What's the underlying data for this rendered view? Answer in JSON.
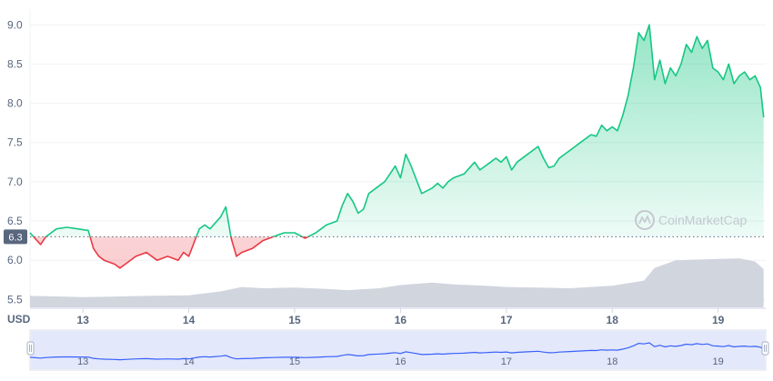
{
  "chart_data": {
    "type": "line",
    "currency_label": "USD",
    "baseline_value": 6.3,
    "baseline_label": "6.3",
    "ylim": [
      5.4,
      9.2
    ],
    "y_ticks": [
      {
        "value": 9.0,
        "label": "9.0"
      },
      {
        "value": 8.5,
        "label": "8.5"
      },
      {
        "value": 8.0,
        "label": "8.0"
      },
      {
        "value": 7.5,
        "label": "7.5"
      },
      {
        "value": 7.0,
        "label": "7.0"
      },
      {
        "value": 6.5,
        "label": "6.5"
      },
      {
        "value": 6.0,
        "label": "6.0"
      },
      {
        "value": 5.5,
        "label": "5.5"
      }
    ],
    "xlim": [
      12.5,
      19.45
    ],
    "x_ticks": [
      {
        "value": 13,
        "label": "13"
      },
      {
        "value": 14,
        "label": "14"
      },
      {
        "value": 15,
        "label": "15"
      },
      {
        "value": 16,
        "label": "16"
      },
      {
        "value": 17,
        "label": "17"
      },
      {
        "value": 18,
        "label": "18"
      },
      {
        "value": 19,
        "label": "19"
      }
    ],
    "price": {
      "x": [
        12.5,
        12.6,
        12.65,
        12.75,
        12.85,
        12.95,
        13.05,
        13.1,
        13.15,
        13.2,
        13.3,
        13.35,
        13.4,
        13.5,
        13.6,
        13.7,
        13.8,
        13.9,
        13.95,
        14.0,
        14.1,
        14.15,
        14.2,
        14.3,
        14.35,
        14.4,
        14.45,
        14.5,
        14.6,
        14.7,
        14.8,
        14.9,
        15.0,
        15.1,
        15.2,
        15.25,
        15.3,
        15.4,
        15.45,
        15.5,
        15.55,
        15.6,
        15.65,
        15.7,
        15.8,
        15.85,
        15.9,
        15.95,
        16.0,
        16.05,
        16.1,
        16.2,
        16.3,
        16.35,
        16.4,
        16.45,
        16.5,
        16.6,
        16.7,
        16.75,
        16.8,
        16.85,
        16.9,
        16.95,
        17.0,
        17.05,
        17.1,
        17.2,
        17.3,
        17.35,
        17.4,
        17.45,
        17.5,
        17.6,
        17.7,
        17.8,
        17.85,
        17.9,
        17.95,
        18.0,
        18.05,
        18.1,
        18.15,
        18.2,
        18.25,
        18.3,
        18.35,
        18.4,
        18.45,
        18.5,
        18.55,
        18.6,
        18.65,
        18.7,
        18.75,
        18.8,
        18.85,
        18.9,
        18.95,
        19.0,
        19.05,
        19.1,
        19.15,
        19.2,
        19.25,
        19.3,
        19.35,
        19.4,
        19.43
      ],
      "y": [
        6.35,
        6.2,
        6.3,
        6.4,
        6.42,
        6.4,
        6.38,
        6.15,
        6.05,
        6.0,
        5.95,
        5.9,
        5.95,
        6.05,
        6.1,
        6.0,
        6.05,
        6.0,
        6.1,
        6.05,
        6.4,
        6.45,
        6.4,
        6.55,
        6.68,
        6.28,
        6.05,
        6.1,
        6.15,
        6.25,
        6.3,
        6.35,
        6.35,
        6.28,
        6.35,
        6.4,
        6.45,
        6.5,
        6.7,
        6.85,
        6.75,
        6.6,
        6.65,
        6.85,
        6.95,
        7.0,
        7.1,
        7.2,
        7.05,
        7.35,
        7.2,
        6.85,
        6.92,
        6.98,
        6.92,
        7.0,
        7.05,
        7.1,
        7.25,
        7.15,
        7.2,
        7.25,
        7.3,
        7.25,
        7.32,
        7.15,
        7.25,
        7.35,
        7.45,
        7.3,
        7.18,
        7.2,
        7.3,
        7.4,
        7.5,
        7.6,
        7.58,
        7.72,
        7.65,
        7.7,
        7.65,
        7.85,
        8.1,
        8.45,
        8.9,
        8.8,
        9.0,
        8.3,
        8.55,
        8.25,
        8.45,
        8.35,
        8.5,
        8.75,
        8.65,
        8.85,
        8.7,
        8.8,
        8.45,
        8.4,
        8.3,
        8.5,
        8.25,
        8.35,
        8.4,
        8.3,
        8.35,
        8.2,
        7.82
      ]
    },
    "volume": {
      "x": [
        12.5,
        12.8,
        13.0,
        13.3,
        13.6,
        14.0,
        14.3,
        14.5,
        14.7,
        15.0,
        15.3,
        15.5,
        15.8,
        16.0,
        16.3,
        16.5,
        16.8,
        17.0,
        17.3,
        17.6,
        17.9,
        18.0,
        18.3,
        18.4,
        18.6,
        18.8,
        19.0,
        19.2,
        19.35,
        19.43
      ],
      "v": [
        0.18,
        0.17,
        0.16,
        0.17,
        0.18,
        0.19,
        0.25,
        0.32,
        0.3,
        0.31,
        0.29,
        0.27,
        0.3,
        0.35,
        0.39,
        0.36,
        0.34,
        0.32,
        0.31,
        0.3,
        0.33,
        0.34,
        0.42,
        0.62,
        0.74,
        0.75,
        0.76,
        0.77,
        0.72,
        0.6
      ]
    },
    "watermark": "CoinMarketCap"
  }
}
